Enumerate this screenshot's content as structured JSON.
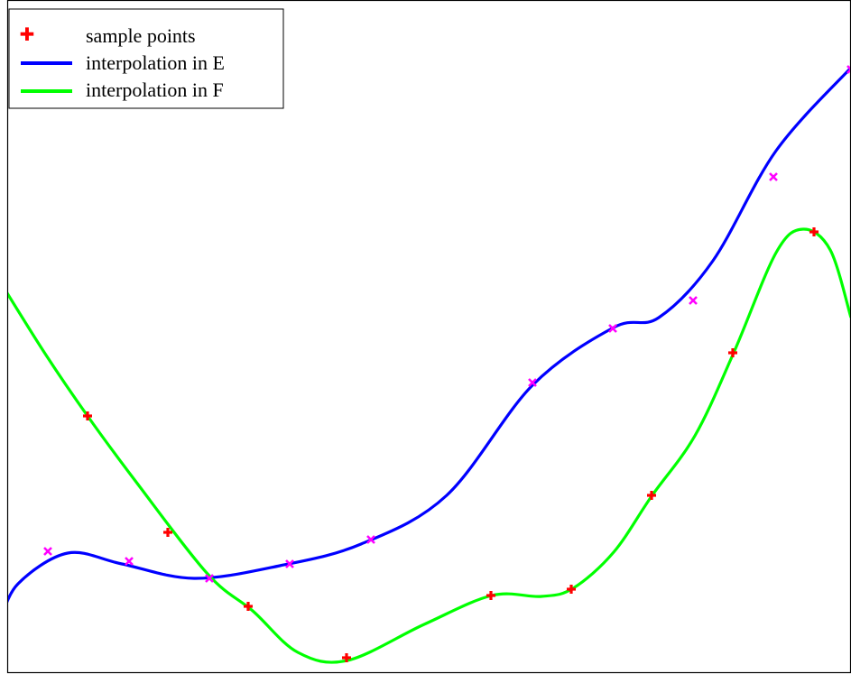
{
  "chart_data": {
    "type": "line",
    "title": "",
    "xlabel": "",
    "ylabel": "",
    "grid": false,
    "legend_position": "top-left",
    "colors": {
      "sample_points": "#ff0000",
      "interp_E": "#0000ff",
      "interp_F": "#00ff00",
      "knot_markers": "#ff00ff"
    },
    "legend": [
      {
        "label": "sample points",
        "kind": "plus",
        "color": "#ff0000"
      },
      {
        "label": "interpolation in E",
        "kind": "line",
        "color": "#0000ff"
      },
      {
        "label": "interpolation in F",
        "kind": "line",
        "color": "#00ff00"
      }
    ],
    "series": [
      {
        "name": "interpolation in E",
        "curve": [
          [
            0,
            58
          ],
          [
            20,
            100
          ],
          [
            75,
            134
          ],
          [
            135,
            122
          ],
          [
            215,
            106
          ],
          [
            310,
            120
          ],
          [
            400,
            144
          ],
          [
            495,
            198
          ],
          [
            590,
            320
          ],
          [
            680,
            384
          ],
          [
            730,
            395
          ],
          [
            790,
            458
          ],
          [
            860,
            580
          ],
          [
            943,
            672
          ]
        ],
        "points": [
          [
            53,
            136
          ],
          [
            143,
            125
          ],
          [
            232,
            106
          ],
          [
            321,
            122
          ],
          [
            411,
            149
          ],
          [
            590,
            323
          ],
          [
            679,
            383
          ],
          [
            768,
            414
          ],
          [
            857,
            551
          ],
          [
            943,
            670
          ]
        ]
      },
      {
        "name": "interpolation in F",
        "curve": [
          [
            0,
            435
          ],
          [
            50,
            355
          ],
          [
            97,
            286
          ],
          [
            150,
            214
          ],
          [
            230,
            111
          ],
          [
            280,
            70
          ],
          [
            330,
            24
          ],
          [
            385,
            15
          ],
          [
            470,
            55
          ],
          [
            545,
            87
          ],
          [
            600,
            86
          ],
          [
            635,
            95
          ],
          [
            680,
            135
          ],
          [
            722,
            197
          ],
          [
            770,
            264
          ],
          [
            813,
            356
          ],
          [
            860,
            467
          ],
          [
            890,
            493
          ],
          [
            920,
            470
          ],
          [
            943,
            395
          ]
        ],
        "markers": [
          [
            97,
            286
          ],
          [
            186,
            157
          ],
          [
            275,
            75
          ],
          [
            384,
            18
          ],
          [
            544,
            87
          ],
          [
            633,
            94
          ],
          [
            722,
            198
          ],
          [
            812,
            356
          ],
          [
            902,
            490
          ]
        ]
      }
    ]
  }
}
